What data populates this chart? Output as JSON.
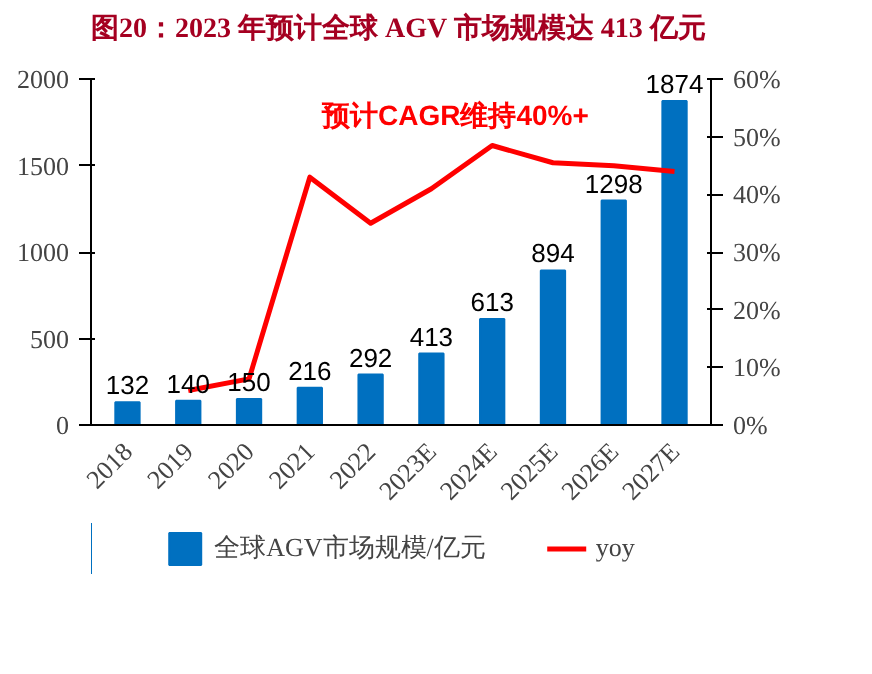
{
  "chart_data": {
    "type": "bar",
    "title": "图20：2023 年预计全球 AGV 市场规模达 413 亿元",
    "categories": [
      "2018",
      "2019",
      "2020",
      "2021",
      "2022",
      "2023E",
      "2024E",
      "2025E",
      "2026E",
      "2027E"
    ],
    "series": [
      {
        "name": "全球AGV市场规模/亿元",
        "color": "#0070c0",
        "values": [
          132,
          140,
          150,
          216,
          292,
          413,
          613,
          894,
          1298,
          1874
        ],
        "value_labels": [
          "132",
          "140",
          "150",
          "216",
          "292",
          "413",
          "613",
          "894",
          "1298",
          "1874"
        ]
      },
      {
        "name": "yoy",
        "type": "line",
        "axis": "y2",
        "color": "#ff0000",
        "values": [
          null,
          6,
          8,
          43,
          35,
          41,
          48.5,
          45.5,
          45,
          44
        ]
      }
    ],
    "ylim": [
      0,
      2000
    ],
    "yticks": [
      0,
      500,
      1000,
      1500,
      2000
    ],
    "y2lim": [
      0,
      60
    ],
    "y2ticks": [
      {
        "value": 0,
        "label": "0%"
      },
      {
        "value": 10,
        "label": "10%"
      },
      {
        "value": 20,
        "label": "20%"
      },
      {
        "value": 30,
        "label": "30%"
      },
      {
        "value": 40,
        "label": "40%"
      },
      {
        "value": 50,
        "label": "50%"
      },
      {
        "value": 60,
        "label": "60%"
      }
    ],
    "annotations": [
      "预计CAGR维持40%+"
    ],
    "grid": false,
    "legend": "bottom",
    "marker": "none",
    "line_style": "solid"
  }
}
